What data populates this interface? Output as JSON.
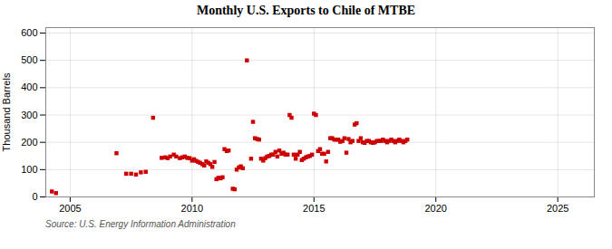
{
  "chart_data": {
    "type": "scatter",
    "title": "Monthly U.S. Exports to Chile of MTBE",
    "ylabel": "Thousand Barrels",
    "caption": "Source: U.S. Energy Information Administration",
    "color": "#cc0000",
    "marker": "square",
    "grid": true,
    "xlim": [
      2004.0,
      2026.5
    ],
    "ylim": [
      0,
      620
    ],
    "xticks": [
      2005,
      2010,
      2015,
      2020,
      2025
    ],
    "yticks": [
      0,
      100,
      200,
      300,
      400,
      500,
      600
    ],
    "x": [
      2004.25,
      2004.42,
      2006.9,
      2007.3,
      2007.5,
      2007.7,
      2007.9,
      2008.1,
      2008.4,
      2008.75,
      2008.9,
      2009.0,
      2009.1,
      2009.25,
      2009.35,
      2009.5,
      2009.6,
      2009.7,
      2009.8,
      2009.9,
      2010.0,
      2010.08,
      2010.17,
      2010.25,
      2010.33,
      2010.42,
      2010.5,
      2010.58,
      2010.67,
      2010.75,
      2010.83,
      2010.92,
      2011.0,
      2011.08,
      2011.17,
      2011.25,
      2011.33,
      2011.42,
      2011.5,
      2011.67,
      2011.75,
      2011.83,
      2011.92,
      2012.0,
      2012.08,
      2012.25,
      2012.42,
      2012.5,
      2012.58,
      2012.67,
      2012.75,
      2012.83,
      2012.92,
      2013.0,
      2013.08,
      2013.17,
      2013.25,
      2013.33,
      2013.42,
      2013.5,
      2013.58,
      2013.67,
      2013.75,
      2013.83,
      2013.92,
      2014.0,
      2014.08,
      2014.17,
      2014.25,
      2014.33,
      2014.42,
      2014.5,
      2014.58,
      2014.67,
      2014.75,
      2014.83,
      2014.92,
      2015.0,
      2015.08,
      2015.17,
      2015.25,
      2015.33,
      2015.42,
      2015.5,
      2015.58,
      2015.67,
      2015.75,
      2015.83,
      2015.92,
      2016.0,
      2016.08,
      2016.17,
      2016.25,
      2016.33,
      2016.42,
      2016.5,
      2016.58,
      2016.67,
      2016.75,
      2016.83,
      2016.92,
      2017.0,
      2017.08,
      2017.17,
      2017.25,
      2017.33,
      2017.42,
      2017.5,
      2017.58,
      2017.67,
      2017.75,
      2017.83,
      2017.92,
      2018.0,
      2018.08,
      2018.17,
      2018.25,
      2018.33,
      2018.42,
      2018.5,
      2018.58,
      2018.67,
      2018.75,
      2018.83
    ],
    "values": [
      20,
      14,
      160,
      85,
      85,
      82,
      90,
      92,
      290,
      143,
      145,
      142,
      148,
      155,
      148,
      142,
      145,
      148,
      143,
      142,
      133,
      138,
      132,
      128,
      125,
      120,
      115,
      130,
      125,
      120,
      110,
      128,
      65,
      70,
      68,
      72,
      175,
      168,
      170,
      30,
      28,
      100,
      108,
      112,
      105,
      500,
      140,
      275,
      215,
      212,
      210,
      140,
      133,
      142,
      148,
      150,
      155,
      155,
      165,
      148,
      170,
      158,
      162,
      155,
      155,
      300,
      290,
      155,
      140,
      155,
      165,
      135,
      140,
      145,
      148,
      150,
      155,
      305,
      300,
      168,
      175,
      158,
      158,
      130,
      165,
      215,
      215,
      210,
      210,
      210,
      202,
      205,
      215,
      162,
      212,
      200,
      205,
      265,
      270,
      205,
      215,
      200,
      198,
      205,
      205,
      200,
      198,
      200,
      205,
      205,
      205,
      210,
      205,
      200,
      205,
      210,
      205,
      200,
      205,
      210,
      205,
      200,
      205,
      210
    ]
  }
}
